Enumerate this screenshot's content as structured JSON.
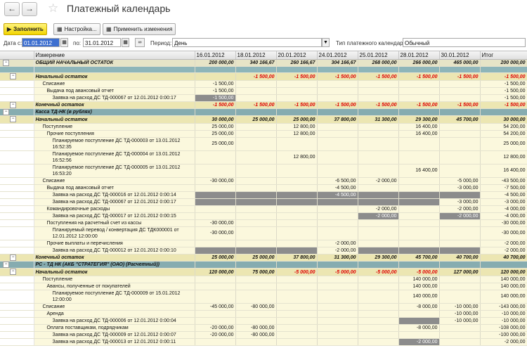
{
  "window": {
    "title": "Платежный календарь"
  },
  "toolbar": {
    "fill_label": "Заполнить",
    "settings_label": "Настройка...",
    "apply_label": "Применить изменения"
  },
  "filters": {
    "date_from_label": "Дата с:",
    "date_from": "01.01.2012",
    "date_to_label": "по:",
    "date_to": "31.01.2012",
    "period_label": "Период:",
    "period": "День",
    "calendar_type_label": "Тип платежного календаря:",
    "calendar_type": "Обычный"
  },
  "grid": {
    "columns": [
      "Измерение",
      "16.01.2012",
      "18.01.2012",
      "20.01.2012",
      "24.01.2012",
      "25.01.2012",
      "28.01.2012",
      "30.01.2012",
      "Итог"
    ],
    "rows": [
      {
        "type": "total",
        "c": [
          "ОБЩИЙ НАЧАЛЬНЫЙ ОСТАТОК",
          "200 000,00",
          "340 166,67",
          "260 166,67",
          "304 166,67",
          "268 000,00",
          "266 000,00",
          "465 000,00",
          "200 000,00"
        ]
      },
      {
        "type": "teal",
        "c": [
          "",
          "",
          "",
          "",
          "",
          "",
          "",
          "",
          ""
        ]
      },
      {
        "type": "bal",
        "ind": 1,
        "c": [
          "Начальный остаток",
          "",
          "-1 500,00",
          "-1 500,00",
          "-1 500,00",
          "-1 500,00",
          "-1 500,00",
          "-1 500,00",
          "-1 500,00"
        ]
      },
      {
        "type": "row",
        "ind": 2,
        "c": [
          "Списание",
          "-1 500,00",
          "",
          "",
          "",
          "",
          "",
          "",
          "-1 500,00"
        ]
      },
      {
        "type": "row",
        "ind": 3,
        "c": [
          "Выдача под авансовый отчет",
          "-1 500,00",
          "",
          "",
          "",
          "",
          "",
          "",
          "-1 500,00"
        ]
      },
      {
        "type": "row",
        "ind": 4,
        "dark": [
          1
        ],
        "c": [
          "Заявка на расход ДС ТД-000067 от 12.01.2012 0:00:17",
          "-1 500,00",
          "",
          "",
          "",
          "",
          "",
          "",
          "-1 500,00"
        ]
      },
      {
        "type": "bal",
        "ind": 1,
        "c": [
          "Конечный остаток",
          "-1 500,00",
          "-1 500,00",
          "-1 500,00",
          "-1 500,00",
          "-1 500,00",
          "-1 500,00",
          "-1 500,00",
          "-1 500,00"
        ]
      },
      {
        "type": "acc",
        "c": [
          "Касса ТД-НК (в рублях)",
          "",
          "",
          "",
          "",
          "",
          "",
          "",
          ""
        ]
      },
      {
        "type": "bal",
        "ind": 1,
        "c": [
          "Начальный остаток",
          "30 000,00",
          "25 000,00",
          "25 000,00",
          "37 800,00",
          "31 300,00",
          "29 300,00",
          "45 700,00",
          "30 000,00"
        ]
      },
      {
        "type": "row",
        "ind": 2,
        "c": [
          "Поступление",
          "25 000,00",
          "",
          "12 800,00",
          "",
          "",
          "16 400,00",
          "",
          "54 200,00"
        ]
      },
      {
        "type": "row",
        "ind": 3,
        "c": [
          "Прочие поступления",
          "25 000,00",
          "",
          "12 800,00",
          "",
          "",
          "16 400,00",
          "",
          "54 200,00"
        ]
      },
      {
        "type": "tall",
        "ind": 4,
        "c": [
          "Планируемое поступление ДС ТД-000003 от 13.01.2012 16:52:35",
          "25 000,00",
          "",
          "",
          "",
          "",
          "",
          "",
          "25 000,00"
        ]
      },
      {
        "type": "tall",
        "ind": 4,
        "c": [
          "Планируемое поступление ДС ТД-000004 от 13.01.2012 16:52:56",
          "",
          "",
          "12 800,00",
          "",
          "",
          "",
          "",
          "12 800,00"
        ]
      },
      {
        "type": "tall",
        "ind": 4,
        "c": [
          "Планируемое поступление ДС ТД-000005 от 13.01.2012 16:53:20",
          "",
          "",
          "",
          "",
          "",
          "16 400,00",
          "",
          "16 400,00"
        ]
      },
      {
        "type": "row",
        "ind": 2,
        "c": [
          "Списание",
          "-30 000,00",
          "",
          "",
          "-6 500,00",
          "-2 000,00",
          "",
          "-5 000,00",
          "-43 500,00"
        ]
      },
      {
        "type": "row",
        "ind": 3,
        "c": [
          "Выдача под авансовый отчет",
          "",
          "",
          "",
          "-4 500,00",
          "",
          "",
          "-3 000,00",
          "-7 500,00"
        ]
      },
      {
        "type": "row",
        "ind": 4,
        "dark": [
          1,
          2,
          3,
          4,
          5,
          6,
          7
        ],
        "c": [
          "Заявка на расход ДС ТД-000016 от 12.01.2012 0:00:14",
          "",
          "",
          "",
          "-4 500,00",
          "",
          "",
          "",
          "-4 500,00"
        ]
      },
      {
        "type": "row",
        "ind": 4,
        "dark": [
          1,
          2,
          3,
          4,
          5,
          6
        ],
        "c": [
          "Заявка на расход ДС ТД-000067 от 12.01.2012 0:00:17",
          "",
          "",
          "",
          "",
          "",
          "",
          "-3 000,00",
          "-3 000,00"
        ]
      },
      {
        "type": "row",
        "ind": 3,
        "c": [
          "Командировочные расходы",
          "",
          "",
          "",
          "",
          "-2 000,00",
          "",
          "-2 000,00",
          "-4 000,00"
        ]
      },
      {
        "type": "row",
        "ind": 4,
        "dark": [
          5,
          7
        ],
        "c": [
          "Заявка на расход ДС ТД-000017 от 12.01.2012 0:00:15",
          "",
          "",
          "",
          "",
          "-2 000,00",
          "",
          "-2 000,00",
          "-4 000,00"
        ]
      },
      {
        "type": "row",
        "ind": 3,
        "c": [
          "Поступления на расчетный счет из кассы",
          "-30 000,00",
          "",
          "",
          "",
          "",
          "",
          "",
          "-30 000,00"
        ]
      },
      {
        "type": "tall",
        "ind": 4,
        "c": [
          "Планируемый перевод / конвертация ДС ТДК000001 от 12.01.2012 12:00:00",
          "-30 000,00",
          "",
          "",
          "",
          "",
          "",
          "",
          "-30 000,00"
        ]
      },
      {
        "type": "row",
        "ind": 3,
        "c": [
          "Прочие выплаты и перечисления",
          "",
          "",
          "",
          "-2 000,00",
          "",
          "",
          "",
          "-2 000,00"
        ]
      },
      {
        "type": "row",
        "ind": 4,
        "dark": [
          1,
          2,
          3,
          5,
          6,
          7
        ],
        "c": [
          "Заявка на расход ДС ТД-000012 от 12.01.2012 0:00:10",
          "",
          "",
          "",
          "-2 000,00",
          "",
          "",
          "",
          "-2 000,00"
        ]
      },
      {
        "type": "bal",
        "ind": 1,
        "c": [
          "Конечный остаток",
          "25 000,00",
          "25 000,00",
          "37 800,00",
          "31 300,00",
          "29 300,00",
          "45 700,00",
          "40 700,00",
          "40 700,00"
        ]
      },
      {
        "type": "acc",
        "c": [
          "РС - ТД НК (АКБ \"СТРАТЕГИЯ\" (ОАО) (Расчетный))",
          "",
          "",
          "",
          "",
          "",
          "",
          "",
          ""
        ]
      },
      {
        "type": "bal",
        "ind": 1,
        "c": [
          "Начальный остаток",
          "120 000,00",
          "75 000,00",
          "-5 000,00",
          "-5 000,00",
          "-5 000,00",
          "-5 000,00",
          "127 000,00",
          "120 000,00"
        ]
      },
      {
        "type": "row",
        "ind": 2,
        "c": [
          "Поступление",
          "",
          "",
          "",
          "",
          "",
          "140 000,00",
          "",
          "140 000,00"
        ]
      },
      {
        "type": "row",
        "ind": 3,
        "c": [
          "Авансы, полученные от покупателей",
          "",
          "",
          "",
          "",
          "",
          "140 000,00",
          "",
          "140 000,00"
        ]
      },
      {
        "type": "tall",
        "ind": 4,
        "c": [
          "Планируемое поступление ДС ТД-000009 от 15.01.2012 12:00:00",
          "",
          "",
          "",
          "",
          "",
          "140 000,00",
          "",
          "140 000,00"
        ]
      },
      {
        "type": "row",
        "ind": 2,
        "c": [
          "Списание",
          "-45 000,00",
          "-80 000,00",
          "",
          "",
          "",
          "-8 000,00",
          "-10 000,00",
          "-143 000,00"
        ]
      },
      {
        "type": "row",
        "ind": 3,
        "c": [
          "Аренда",
          "",
          "",
          "",
          "",
          "",
          "",
          "-10 000,00",
          "-10 000,00"
        ]
      },
      {
        "type": "row",
        "ind": 4,
        "dark": [
          6
        ],
        "c": [
          "Заявка на расход ДС ТД-000006 от 12.01.2012 0:00:04",
          "",
          "",
          "",
          "",
          "",
          "",
          "-10 000,00",
          "-10 000,00"
        ]
      },
      {
        "type": "row",
        "ind": 3,
        "c": [
          "Оплата поставщикам, подрядчикам",
          "-20 000,00",
          "-80 000,00",
          "",
          "",
          "",
          "-8 000,00",
          "",
          "-108 000,00"
        ]
      },
      {
        "type": "row",
        "ind": 4,
        "c": [
          "Заявка на расход ДС ТД-000009 от 12.01.2012 0:00:07",
          "-20 000,00",
          "-80 000,00",
          "",
          "",
          "",
          "",
          "",
          "-100 000,00"
        ]
      },
      {
        "type": "row",
        "ind": 4,
        "dark": [
          6
        ],
        "c": [
          "Заявка на расход ДС ТД-000013 от 12.01.2012 0:00:11",
          "",
          "",
          "",
          "",
          "",
          "-2 000,00",
          "",
          "-2 000,00"
        ]
      }
    ]
  }
}
